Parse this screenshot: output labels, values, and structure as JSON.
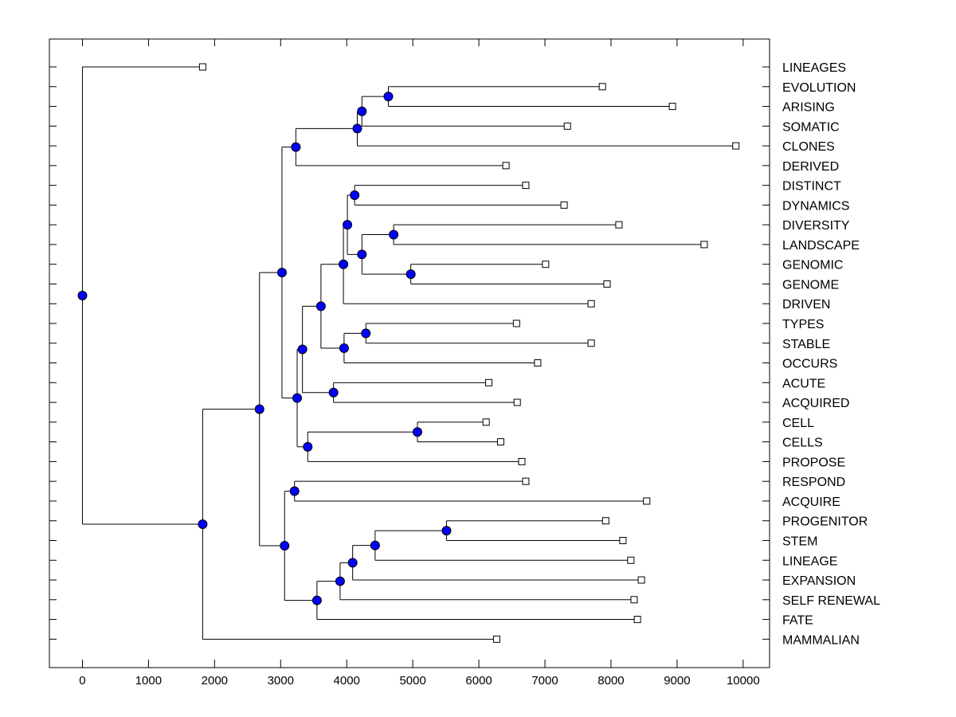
{
  "chart_data": {
    "type": "dendrogram",
    "orientation": "horizontal",
    "xlim": [
      -500,
      10400
    ],
    "xticks": [
      0,
      1000,
      2000,
      3000,
      4000,
      5000,
      6000,
      7000,
      8000,
      9000,
      10000
    ],
    "xlabel": "",
    "ylabel": "",
    "title": "",
    "grid": false,
    "colors": {
      "node_fill": "#0000ff",
      "node_stroke": "#000000",
      "leaf_fill": "#ffffff",
      "line": "#000000"
    },
    "tree": {
      "h": 0,
      "children": [
        {
          "label": "LINEAGES",
          "value": 1820
        },
        {
          "h": 1820,
          "children": [
            {
              "h": 2680,
              "children": [
                {
                  "h": 3020,
                  "children": [
                    {
                      "h": 3230,
                      "children": [
                        {
                          "h": 4160,
                          "children": [
                            {
                              "h": 4230,
                              "children": [
                                {
                                  "h": 4630,
                                  "children": [
                                    {
                                      "label": "EVOLUTION",
                                      "value": 7870
                                    },
                                    {
                                      "label": "ARISING",
                                      "value": 8930
                                    }
                                  ]
                                },
                                {
                                  "label": "SOMATIC",
                                  "value": 7340
                                }
                              ]
                            },
                            {
                              "label": "CLONES",
                              "value": 9890
                            }
                          ]
                        },
                        {
                          "label": "DERIVED",
                          "value": 6410
                        }
                      ]
                    },
                    {
                      "h": 3250,
                      "children": [
                        {
                          "h": 3330,
                          "children": [
                            {
                              "h": 3610,
                              "children": [
                                {
                                  "h": 3950,
                                  "children": [
                                    {
                                      "h": 4010,
                                      "children": [
                                        {
                                          "h": 4120,
                                          "children": [
                                            {
                                              "label": "DISTINCT",
                                              "value": 6710
                                            },
                                            {
                                              "label": "DYNAMICS",
                                              "value": 7290
                                            }
                                          ]
                                        },
                                        {
                                          "h": 4230,
                                          "children": [
                                            {
                                              "h": 4710,
                                              "children": [
                                                {
                                                  "label": "DIVERSITY",
                                                  "value": 8120
                                                },
                                                {
                                                  "label": "LANDSCAPE",
                                                  "value": 9410
                                                }
                                              ]
                                            },
                                            {
                                              "h": 4970,
                                              "children": [
                                                {
                                                  "label": "GENOMIC",
                                                  "value": 7010
                                                },
                                                {
                                                  "label": "GENOME",
                                                  "value": 7940
                                                }
                                              ]
                                            }
                                          ]
                                        }
                                      ]
                                    },
                                    {
                                      "label": "DRIVEN",
                                      "value": 7700
                                    }
                                  ]
                                },
                                {
                                  "h": 3960,
                                  "children": [
                                    {
                                      "h": 4290,
                                      "children": [
                                        {
                                          "label": "TYPES",
                                          "value": 6570
                                        },
                                        {
                                          "label": "STABLE",
                                          "value": 7700
                                        }
                                      ]
                                    },
                                    {
                                      "label": "OCCURS",
                                      "value": 6890
                                    }
                                  ]
                                }
                              ]
                            },
                            {
                              "h": 3800,
                              "children": [
                                {
                                  "label": "ACUTE",
                                  "value": 6150
                                },
                                {
                                  "label": "ACQUIRED",
                                  "value": 6580
                                }
                              ]
                            }
                          ]
                        },
                        {
                          "h": 3410,
                          "children": [
                            {
                              "h": 5070,
                              "children": [
                                {
                                  "label": "CELL",
                                  "value": 6110
                                },
                                {
                                  "label": "CELLS",
                                  "value": 6330
                                }
                              ]
                            },
                            {
                              "label": "PROPOSE",
                              "value": 6650
                            }
                          ]
                        }
                      ]
                    }
                  ]
                },
                {
                  "h": 3060,
                  "children": [
                    {
                      "h": 3210,
                      "children": [
                        {
                          "label": "RESPOND",
                          "value": 6710
                        },
                        {
                          "label": "ACQUIRE",
                          "value": 8540
                        }
                      ]
                    },
                    {
                      "h": 3550,
                      "children": [
                        {
                          "h": 3900,
                          "children": [
                            {
                              "h": 4090,
                              "children": [
                                {
                                  "h": 4430,
                                  "children": [
                                    {
                                      "h": 5510,
                                      "children": [
                                        {
                                          "label": "PROGENITOR",
                                          "value": 7920
                                        },
                                        {
                                          "label": "STEM",
                                          "value": 8180
                                        }
                                      ]
                                    },
                                    {
                                      "label": "LINEAGE",
                                      "value": 8300
                                    }
                                  ]
                                },
                                {
                                  "label": "EXPANSION",
                                  "value": 8460
                                }
                              ]
                            },
                            {
                              "label": "SELF RENEWAL",
                              "value": 8350
                            }
                          ]
                        },
                        {
                          "label": "FATE",
                          "value": 8400
                        }
                      ]
                    }
                  ]
                }
              ]
            },
            {
              "label": "MAMMALIAN",
              "value": 6270
            }
          ]
        }
      ]
    }
  }
}
